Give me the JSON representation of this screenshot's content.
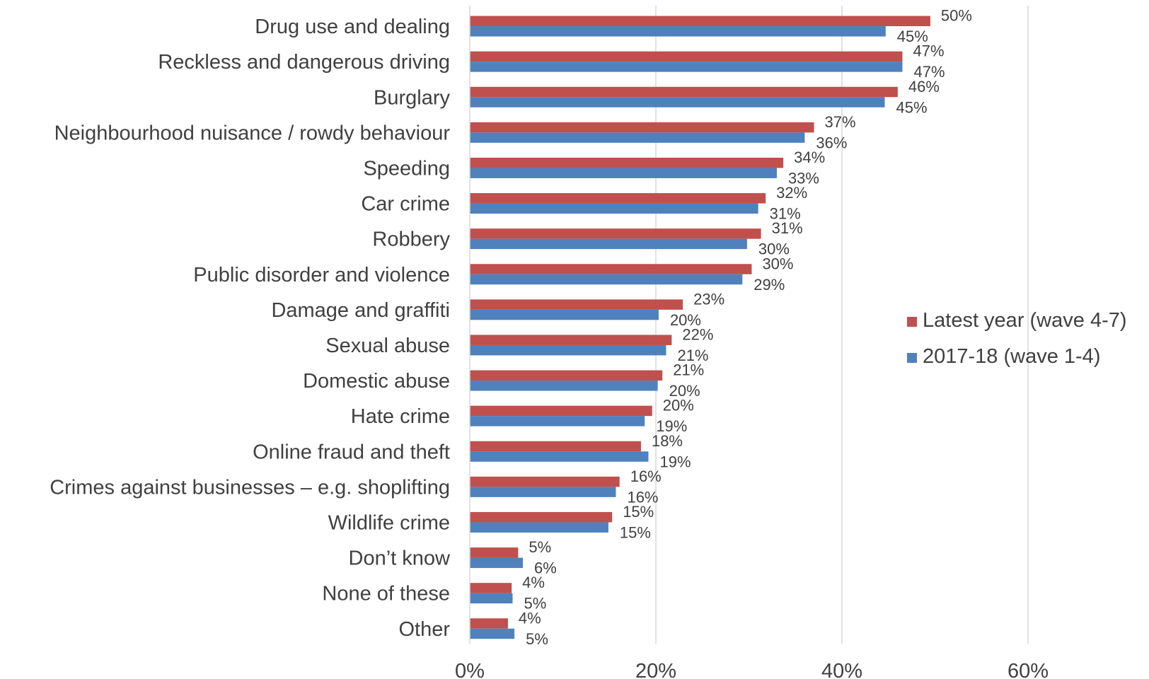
{
  "chart_data": {
    "type": "bar",
    "orientation": "horizontal",
    "categories": [
      "Drug use and dealing",
      "Reckless and dangerous driving",
      "Burglary",
      "Neighbourhood nuisance / rowdy behaviour",
      "Speeding",
      "Car crime",
      "Robbery",
      "Public disorder and violence",
      "Damage and graffiti",
      "Sexual abuse",
      "Domestic abuse",
      "Hate crime",
      "Online fraud and theft",
      "Crimes against businesses – e.g. shoplifting",
      "Wildlife crime",
      "Don’t know",
      "None of these",
      "Other"
    ],
    "series": [
      {
        "name": "Latest year (wave 4-7)",
        "color": "#C0504D",
        "values": [
          49.5,
          46.5,
          46,
          37,
          33.7,
          31.8,
          31.3,
          30.3,
          22.9,
          21.7,
          20.7,
          19.6,
          18.4,
          16.1,
          15.3,
          5.2,
          4.5,
          4.1
        ],
        "labels": [
          "50%",
          "47%",
          "46%",
          "37%",
          "34%",
          "32%",
          "31%",
          "30%",
          "23%",
          "22%",
          "21%",
          "20%",
          "18%",
          "16%",
          "15%",
          "5%",
          "4%",
          "4%"
        ]
      },
      {
        "name": "2017-18 (wave 1-4)",
        "color": "#4F81BD",
        "values": [
          44.7,
          46.5,
          44.6,
          36,
          33,
          31,
          29.8,
          29.3,
          20.3,
          21.1,
          20.2,
          18.8,
          19.2,
          15.7,
          14.9,
          5.7,
          4.6,
          4.8
        ],
        "labels": [
          "45%",
          "47%",
          "45%",
          "36%",
          "33%",
          "31%",
          "30%",
          "29%",
          "20%",
          "21%",
          "20%",
          "19%",
          "19%",
          "16%",
          "15%",
          "6%",
          "5%",
          "5%"
        ]
      }
    ],
    "x_ticks": [
      "0%",
      "20%",
      "40%",
      "60%"
    ],
    "xlim": [
      0,
      72
    ],
    "grid": true,
    "legend": "right"
  }
}
